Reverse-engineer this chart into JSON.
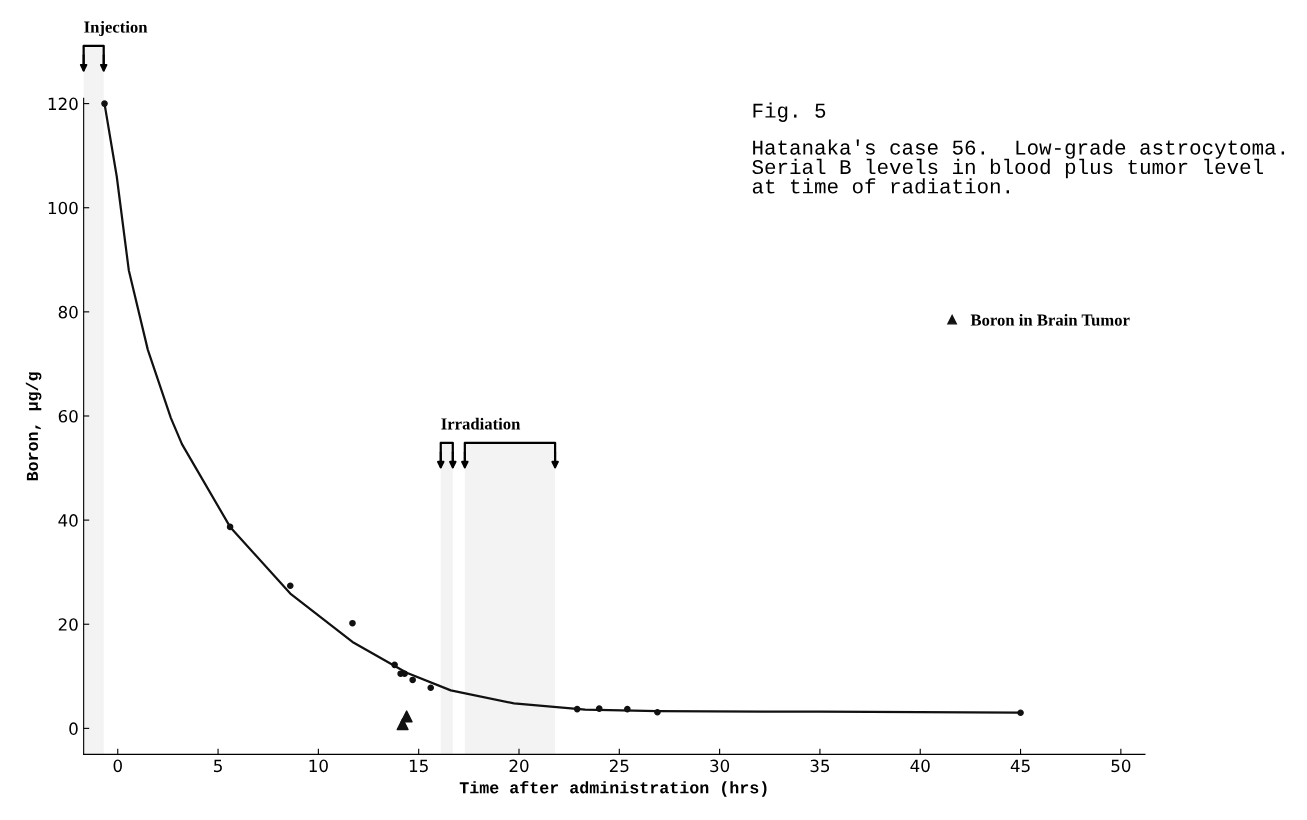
{
  "chart_data": {
    "type": "scatter",
    "title": "Fig. 5",
    "subtitle": "Hatanaka's case 56.  Low-grade astrocytoma.\nSerial B levels in blood plus tumor level\nat time of radiation.",
    "xlabel": "Time after administration (hrs)",
    "ylabel": "Boron, µg/g",
    "xlim": [
      -1.7,
      51.2
    ],
    "ylim": [
      -5,
      121
    ],
    "xticks": [
      0,
      5,
      10,
      15,
      20,
      25,
      30,
      35,
      40,
      45,
      50
    ],
    "yticks": [
      0,
      20,
      40,
      60,
      80,
      100,
      120
    ],
    "grid": false,
    "legend": "right",
    "series": [
      {
        "type": "line",
        "color": "#111111",
        "marker": "none",
        "line_style": "solid",
        "x": [
          -0.66,
          -0.05,
          0.55,
          1.5,
          2.65,
          3.2,
          5.6,
          8.6,
          11.7,
          14.4,
          16.6,
          19.75,
          23.3,
          26.9,
          35,
          45
        ],
        "values": [
          120,
          106,
          88,
          72.7,
          59.6,
          54.6,
          38.7,
          25.9,
          16.6,
          10.7,
          7.3,
          4.8,
          3.6,
          3.3,
          3.2,
          3.0
        ]
      },
      {
        "color": "#111111",
        "marker": "circle",
        "x": [
          -0.66,
          5.6,
          8.6,
          11.7,
          13.8,
          14.1,
          14.3,
          14.7,
          15.6,
          22.9,
          24.0,
          25.4,
          26.9,
          45
        ],
        "values": [
          120,
          38.7,
          27.4,
          20.2,
          12.2,
          10.5,
          10.5,
          9.3,
          7.8,
          3.7,
          3.8,
          3.7,
          3.1,
          3.0
        ]
      },
      {
        "name": "Boron in Brain Tumor",
        "color": "#111111",
        "marker": "triangle",
        "x": [
          14.4,
          14.2
        ],
        "values": [
          2.3,
          0.8
        ]
      }
    ],
    "bands": [
      {
        "axis": "x",
        "from": -1.7,
        "to": -0.7,
        "label": "Injection"
      },
      {
        "axis": "x",
        "from": 16.1,
        "to": 16.7,
        "label": "Irradiation"
      },
      {
        "axis": "x",
        "from": 17.3,
        "to": 21.8
      }
    ]
  }
}
